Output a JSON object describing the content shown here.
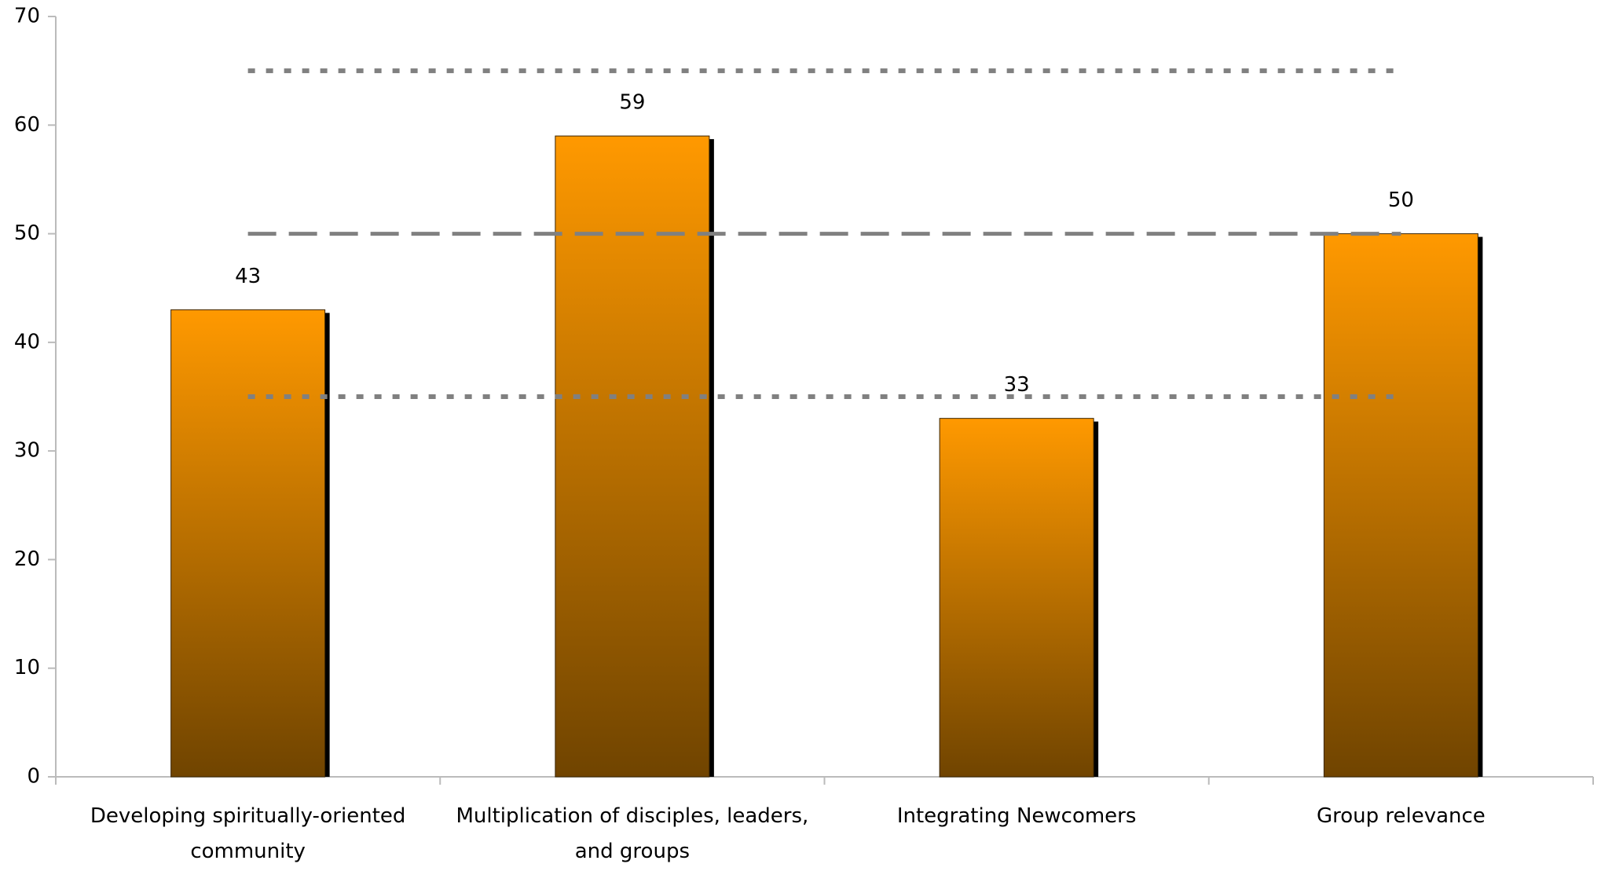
{
  "chart_data": {
    "type": "bar",
    "categories": [
      "Developing spiritually-oriented community",
      "Multiplication of disciples, leaders, and groups",
      "Integrating Newcomers",
      "Group relevance"
    ],
    "values": [
      43,
      59,
      33,
      50
    ],
    "color": "#ff9900",
    "ylim": [
      0,
      70
    ],
    "yticks": [
      0,
      10,
      20,
      30,
      40,
      50,
      60,
      70
    ],
    "reference_lines": [
      {
        "value": 65,
        "style": "dotted"
      },
      {
        "value": 50,
        "style": "dashed"
      },
      {
        "value": 35,
        "style": "dotted"
      }
    ],
    "data_labels": true
  }
}
